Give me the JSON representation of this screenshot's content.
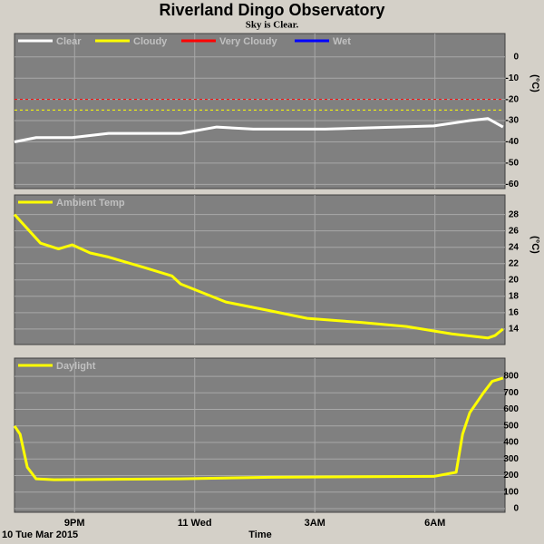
{
  "title": "Riverland Dingo Observatory",
  "subtitle": "Sky is Clear.",
  "chart_data": [
    {
      "type": "line",
      "y_label": "(°C)",
      "xlim": [
        19.5,
        31.75
      ],
      "ylim": [
        -62,
        11
      ],
      "yticks": [
        0,
        -10,
        -20,
        -30,
        -40,
        -50,
        -60
      ],
      "grid": true,
      "x": [
        19.5,
        20.04,
        20.94,
        21.85,
        22.75,
        23.65,
        24.55,
        25.46,
        26.36,
        27.26,
        28.16,
        29.06,
        29.97,
        30.87,
        31.32,
        31.7
      ],
      "series": [
        {
          "name": "Clear",
          "color": "#ffffff",
          "values": [
            -40,
            -38,
            -38,
            -36,
            -36,
            -36,
            -33,
            -34,
            -34,
            -34,
            -33.5,
            -33,
            -32.5,
            -30,
            -29,
            -33
          ]
        },
        {
          "name": "Cloudy",
          "color": "#ffff00",
          "dashed": true,
          "values": [
            -25,
            -25,
            -25,
            -25,
            -25,
            -25,
            -25,
            -25,
            -25,
            -25,
            -25,
            -25,
            -25,
            -25,
            -25,
            -25
          ]
        },
        {
          "name": "Very Cloudy",
          "color": "#ff0000",
          "dashed": true,
          "values": [
            -20,
            -20,
            -20,
            -20,
            -20,
            -20,
            -20,
            -20,
            -20,
            -20,
            -20,
            -20,
            -20,
            -20,
            -20,
            -20
          ]
        },
        {
          "name": "Wet",
          "color": "#0000ff",
          "values": [
            null,
            null,
            null,
            null,
            null,
            null,
            null,
            null,
            null,
            null,
            null,
            null,
            null,
            null,
            null,
            null
          ]
        }
      ]
    },
    {
      "type": "line",
      "y_label": "(°C)",
      "xlim": [
        19.5,
        31.75
      ],
      "ylim": [
        12.1,
        30.4
      ],
      "yticks": [
        14,
        16,
        18,
        20,
        22,
        24,
        26,
        28
      ],
      "grid": true,
      "x": [
        19.5,
        20.15,
        20.6,
        20.94,
        21.39,
        21.85,
        22.75,
        23.43,
        23.65,
        24.78,
        25.91,
        26.81,
        28.16,
        29.29,
        30.42,
        31.32,
        31.5,
        31.7
      ],
      "series": [
        {
          "name": "Ambient Temp",
          "color": "#ffff00",
          "values": [
            28,
            24.5,
            23.8,
            24.3,
            23.3,
            22.8,
            21.5,
            20.5,
            19.5,
            17.3,
            16.2,
            15.3,
            14.8,
            14.3,
            13.4,
            12.9,
            13.2,
            14
          ]
        }
      ]
    },
    {
      "type": "line",
      "xlim": [
        19.5,
        31.75
      ],
      "ylim": [
        -22,
        910
      ],
      "yticks": [
        0,
        100,
        200,
        300,
        400,
        500,
        600,
        700,
        800
      ],
      "grid": true,
      "xticks": [
        {
          "value": 21,
          "label": "9PM"
        },
        {
          "value": 24,
          "label": "11 Wed"
        },
        {
          "value": 27,
          "label": "3AM"
        },
        {
          "value": 30,
          "label": "6AM"
        }
      ],
      "date_label": "10 Tue Mar 2015",
      "x_label": "Time",
      "x": [
        19.5,
        19.64,
        19.82,
        20.04,
        20.49,
        23.65,
        25.91,
        29.97,
        30.53,
        30.69,
        30.87,
        31.21,
        31.43,
        31.7
      ],
      "series": [
        {
          "name": "Daylight",
          "color": "#ffff00",
          "values": [
            500,
            450,
            250,
            180,
            175,
            180,
            190,
            195,
            220,
            450,
            580,
            700,
            770,
            790
          ]
        }
      ]
    }
  ]
}
